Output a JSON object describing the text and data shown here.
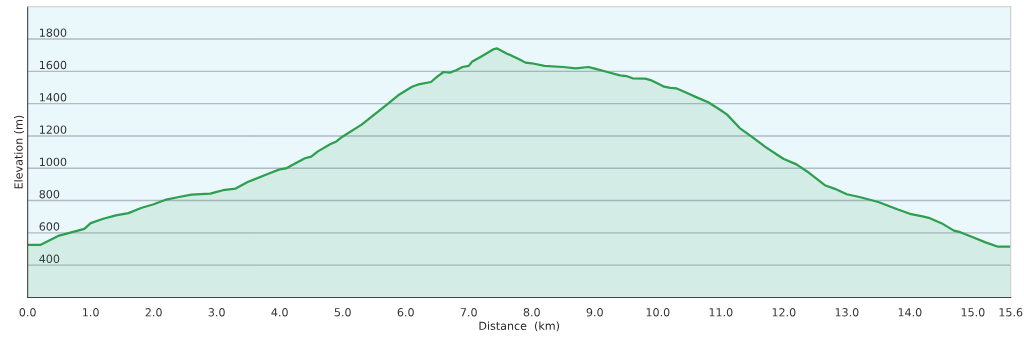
{
  "chart_data": {
    "type": "area",
    "xlabel": "Distance  (km)",
    "ylabel": "Elevation (m)",
    "x": [
      0,
      0.2,
      0.5,
      0.9,
      1.0,
      1.2,
      1.4,
      1.6,
      1.8,
      2.0,
      2.2,
      2.4,
      2.6,
      2.9,
      3.0,
      3.1,
      3.3,
      3.5,
      3.7,
      3.9,
      4.0,
      4.1,
      4.2,
      4.4,
      4.5,
      4.6,
      4.8,
      4.9,
      5.0,
      5.3,
      5.5,
      5.7,
      5.9,
      6.1,
      6.2,
      6.4,
      6.5,
      6.6,
      6.7,
      6.8,
      6.9,
      7.0,
      7.05,
      7.2,
      7.4,
      7.45,
      7.6,
      7.8,
      7.9,
      8.0,
      8.2,
      8.5,
      8.7,
      8.9,
      9.0,
      9.2,
      9.4,
      9.5,
      9.6,
      9.8,
      9.9,
      10.0,
      10.1,
      10.2,
      10.3,
      10.5,
      10.6,
      10.8,
      10.9,
      11.0,
      11.1,
      11.3,
      11.5,
      11.7,
      11.9,
      12.0,
      12.2,
      12.4,
      12.65,
      12.8,
      13.0,
      13.2,
      13.5,
      13.8,
      14.0,
      14.2,
      14.3,
      14.5,
      14.7,
      14.8,
      15.0,
      15.2,
      15.4,
      15.6
    ],
    "series": [
      {
        "color": "#2e9e4f",
        "values": [
          525,
          525,
          583,
          625,
          660,
          687,
          708,
          722,
          754,
          777,
          806,
          822,
          837,
          843,
          854,
          864,
          874,
          916,
          947,
          978,
          993,
          999,
          1020,
          1062,
          1072,
          1103,
          1149,
          1166,
          1197,
          1270,
          1332,
          1394,
          1457,
          1505,
          1519,
          1534,
          1567,
          1596,
          1592,
          1607,
          1627,
          1634,
          1659,
          1692,
          1738,
          1742,
          1711,
          1675,
          1654,
          1650,
          1634,
          1627,
          1619,
          1627,
          1617,
          1596,
          1575,
          1571,
          1557,
          1555,
          1544,
          1525,
          1505,
          1498,
          1494,
          1460,
          1442,
          1409,
          1384,
          1359,
          1332,
          1249,
          1193,
          1134,
          1082,
          1057,
          1024,
          972,
          895,
          874,
          839,
          822,
          791,
          746,
          718,
          702,
          693,
          660,
          614,
          604,
          573,
          541,
          514,
          514
        ]
      }
    ],
    "xlim": [
      0,
      15.6
    ],
    "ylim": [
      200,
      2000
    ],
    "xticks": [
      {
        "value": 0,
        "label": "0.0"
      },
      {
        "value": 1,
        "label": "1.0"
      },
      {
        "value": 2,
        "label": "2.0"
      },
      {
        "value": 3,
        "label": "3.0"
      },
      {
        "value": 4,
        "label": "4.0"
      },
      {
        "value": 5,
        "label": "5.0"
      },
      {
        "value": 6,
        "label": "6.0"
      },
      {
        "value": 7,
        "label": "7.0"
      },
      {
        "value": 8,
        "label": "8.0"
      },
      {
        "value": 9,
        "label": "9.0"
      },
      {
        "value": 10,
        "label": "10.0"
      },
      {
        "value": 11,
        "label": "11.0"
      },
      {
        "value": 12,
        "label": "12.0"
      },
      {
        "value": 13,
        "label": "13.0"
      },
      {
        "value": 14,
        "label": "14.0"
      },
      {
        "value": 15,
        "label": "15.0"
      },
      15.6
    ],
    "yticks": [
      400,
      600,
      800,
      1000,
      1200,
      1400,
      1600,
      1800
    ],
    "grid": "y"
  }
}
